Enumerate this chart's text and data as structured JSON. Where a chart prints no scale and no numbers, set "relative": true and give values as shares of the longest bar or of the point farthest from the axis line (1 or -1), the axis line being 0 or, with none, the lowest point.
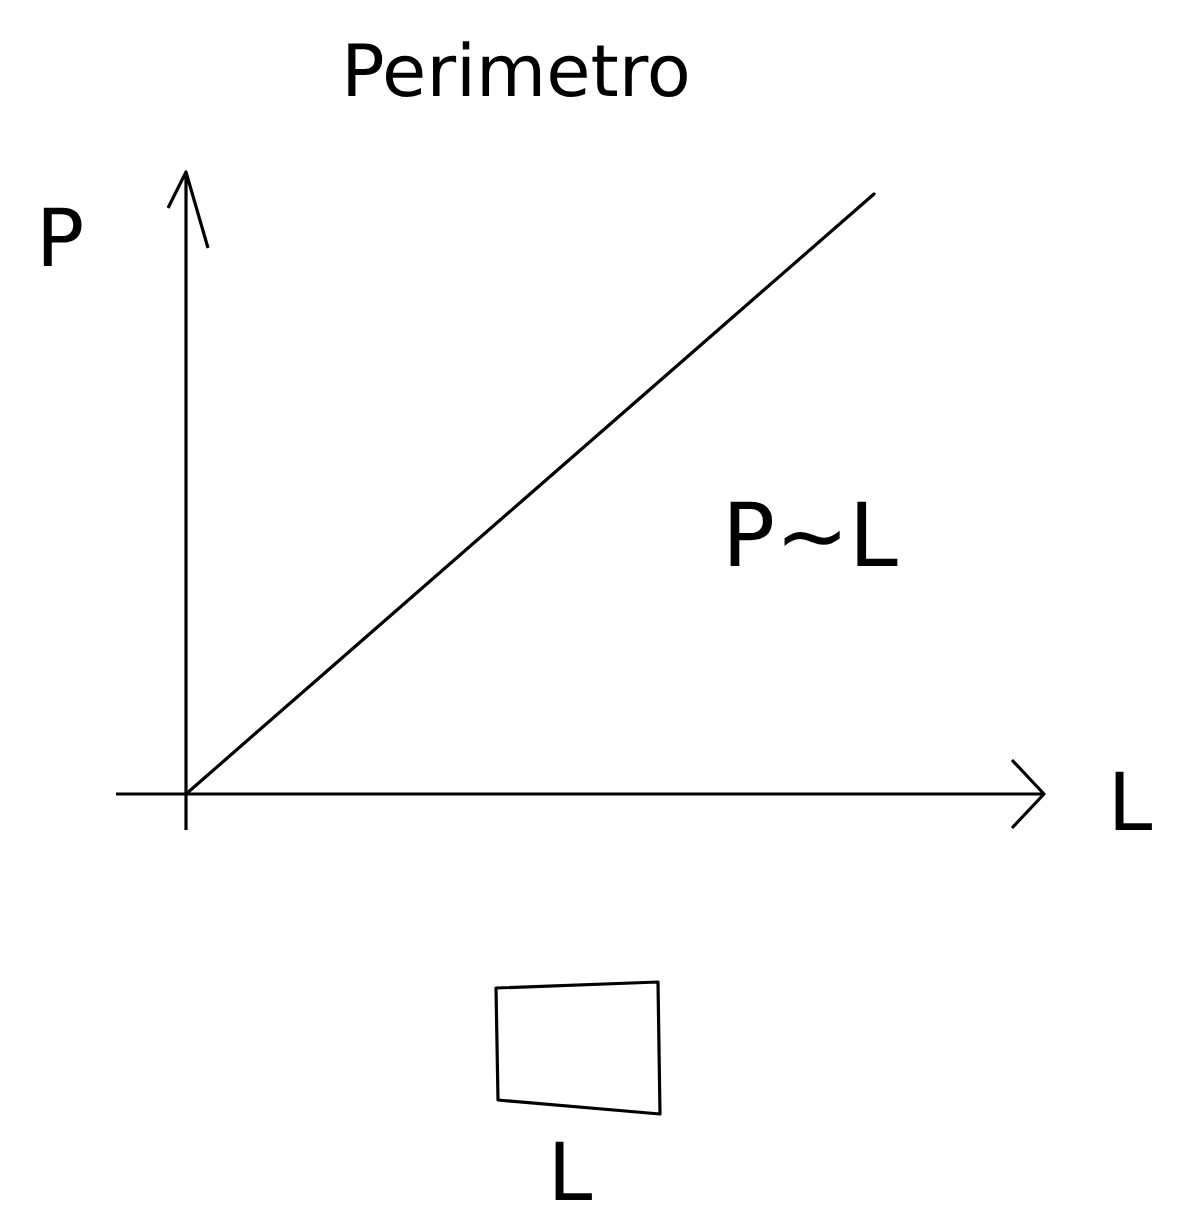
{
  "chart_data": {
    "type": "line",
    "title": "Perimetro",
    "categories": [
      null,
      null,
      null,
      null,
      null
    ],
    "relative": true,
    "series": [
      {
        "color": "#000000",
        "values": [
          0,
          0.25,
          0.5,
          0.75,
          1
        ]
      }
    ],
    "annotations": [
      "P",
      "L",
      "P∼L",
      "L"
    ]
  }
}
